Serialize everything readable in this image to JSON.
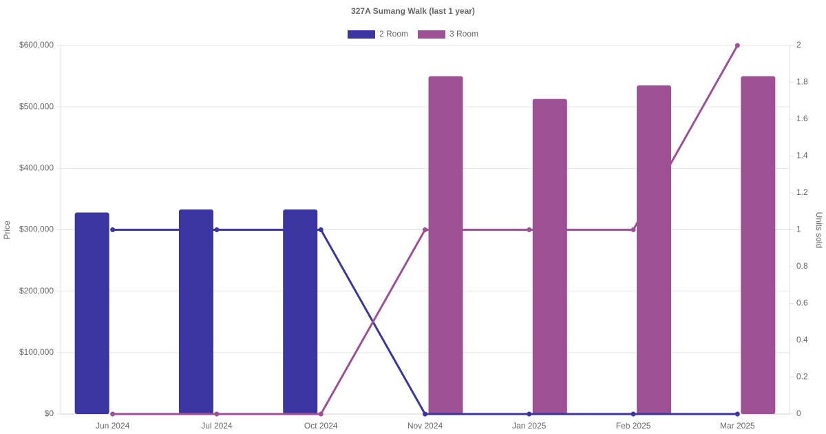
{
  "chart_data": {
    "type": "bar-line",
    "title": "327A Sumang Walk (last 1 year)",
    "y_label": "Price",
    "y2_label": "Units sold",
    "categories": [
      "Jun 2024",
      "Jul 2024",
      "Oct 2024",
      "Nov 2024",
      "Jan 2025",
      "Feb 2025",
      "Mar 2025"
    ],
    "series": [
      {
        "name": "2 Room",
        "color": "#3a35a0",
        "values": [
          328000,
          333000,
          333000,
          null,
          null,
          null,
          null
        ],
        "units_sold": [
          1,
          1,
          1,
          0,
          0,
          0,
          0
        ]
      },
      {
        "name": "3 Room",
        "color": "#9e5095",
        "values": [
          null,
          null,
          null,
          550000,
          513000,
          535000,
          550000
        ],
        "units_sold": [
          0,
          0,
          0,
          1,
          1,
          1,
          2
        ]
      }
    ],
    "ylim": [
      0,
      600000
    ],
    "yticks": [
      {
        "value": 0,
        "label": "$0"
      },
      {
        "value": 100000,
        "label": "$100,000"
      },
      {
        "value": 200000,
        "label": "$200,000"
      },
      {
        "value": 300000,
        "label": "$300,000"
      },
      {
        "value": 400000,
        "label": "$400,000"
      },
      {
        "value": 500000,
        "label": "$500,000"
      },
      {
        "value": 600000,
        "label": "$600,000"
      }
    ],
    "y2lim": [
      0,
      2
    ],
    "y2ticks": [
      0,
      0.2,
      0.4,
      0.6,
      0.8,
      1,
      1.2,
      1.4,
      1.6,
      1.8,
      2
    ],
    "grid": true,
    "legend": "top"
  }
}
